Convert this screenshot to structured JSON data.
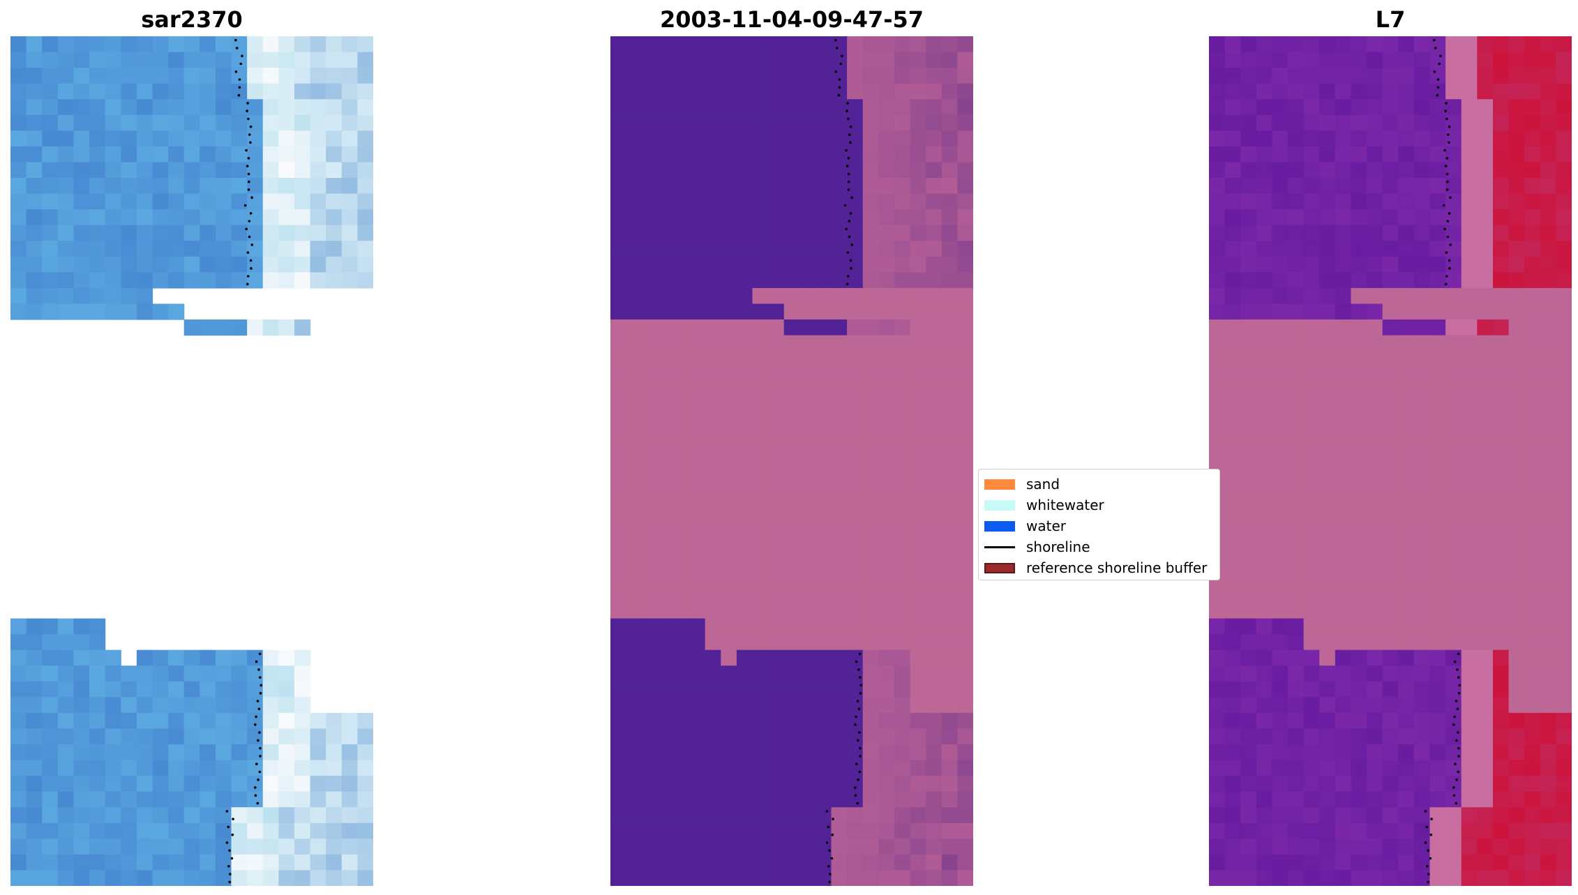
{
  "panels": [
    {
      "title": "sar2370",
      "name": "rgb"
    },
    {
      "title": "2003-11-04-09-47-57",
      "name": "classified"
    },
    {
      "title": "L7",
      "name": "mndwi"
    }
  ],
  "legend": {
    "items": [
      {
        "label": "sand",
        "color": "#ff8a3d",
        "kind": "patch"
      },
      {
        "label": "whitewater",
        "color": "#c8fbf8",
        "kind": "patch"
      },
      {
        "label": "water",
        "color": "#0b5bf0",
        "kind": "patch"
      },
      {
        "label": "shoreline",
        "color": "#000000",
        "kind": "line"
      },
      {
        "label": "reference shoreline buffer",
        "color": "#9a2a2a",
        "kind": "buffer"
      }
    ]
  },
  "colors": {
    "nodata_pink": "#bc6795",
    "classified_water": "#532297",
    "sar_water_base": "#4a90d6",
    "l7_water_base": "#7120a0",
    "l7_land_base": "#c41f4e"
  }
}
